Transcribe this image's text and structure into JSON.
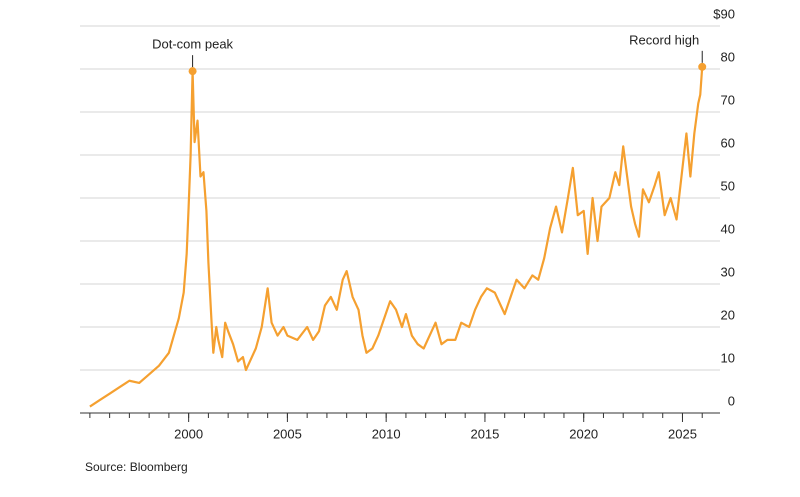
{
  "chart_data": {
    "type": "line",
    "source": "Source: Bloomberg",
    "x": [
      1995.0,
      1995.5,
      1996.0,
      1996.5,
      1997.0,
      1997.5,
      1998.0,
      1998.5,
      1999.0,
      1999.25,
      1999.5,
      1999.75,
      1999.9,
      2000.0,
      2000.1,
      2000.2,
      2000.3,
      2000.45,
      2000.6,
      2000.75,
      2000.9,
      2001.0,
      2001.15,
      2001.25,
      2001.4,
      2001.5,
      2001.7,
      2001.85,
      2002.0,
      2002.25,
      2002.5,
      2002.75,
      2002.9,
      2003.1,
      2003.4,
      2003.7,
      2004.0,
      2004.2,
      2004.5,
      2004.8,
      2005.0,
      2005.5,
      2006.0,
      2006.3,
      2006.6,
      2006.9,
      2007.2,
      2007.5,
      2007.8,
      2008.0,
      2008.3,
      2008.6,
      2008.8,
      2009.0,
      2009.3,
      2009.6,
      2009.9,
      2010.2,
      2010.5,
      2010.8,
      2011.0,
      2011.3,
      2011.6,
      2011.9,
      2012.2,
      2012.5,
      2012.8,
      2013.1,
      2013.5,
      2013.8,
      2014.2,
      2014.5,
      2014.8,
      2015.1,
      2015.5,
      2015.8,
      2016.0,
      2016.3,
      2016.6,
      2017.0,
      2017.4,
      2017.7,
      2018.0,
      2018.3,
      2018.6,
      2018.9,
      2019.2,
      2019.45,
      2019.7,
      2020.0,
      2020.2,
      2020.45,
      2020.7,
      2020.9,
      2021.3,
      2021.6,
      2021.8,
      2022.0,
      2022.2,
      2022.4,
      2022.6,
      2022.8,
      2023.0,
      2023.3,
      2023.6,
      2023.8,
      2024.1,
      2024.4,
      2024.7,
      2025.0,
      2025.2,
      2025.4,
      2025.6,
      2025.8,
      2025.9,
      2026.0
    ],
    "series": [
      {
        "color": "#f5a030",
        "values": [
          1.5,
          3,
          4.5,
          6,
          7.5,
          7,
          9,
          11,
          14,
          18,
          22,
          28,
          37,
          48,
          60,
          79.5,
          63,
          68,
          55,
          56,
          47,
          35,
          22,
          14,
          20,
          17,
          13,
          21,
          19,
          16,
          12,
          13,
          10,
          12,
          15,
          20,
          29,
          21,
          18,
          20,
          18,
          17,
          20,
          17,
          19,
          25,
          27,
          24,
          31,
          33,
          27,
          24,
          18,
          14,
          15,
          18,
          22,
          26,
          24,
          20,
          23,
          18,
          16,
          15,
          18,
          21,
          16,
          17,
          17,
          21,
          20,
          24,
          27,
          29,
          28,
          25,
          23,
          27,
          31,
          29,
          32,
          31,
          36,
          43,
          48,
          42,
          50,
          57,
          46,
          47,
          37,
          50,
          40,
          48,
          50,
          56,
          53,
          62,
          55,
          48,
          44,
          41,
          52,
          49,
          53,
          56,
          46,
          50,
          45,
          57,
          65,
          55,
          65,
          72,
          74,
          80.5
        ]
      }
    ],
    "annotations": [
      {
        "text": "Dot-com peak",
        "x": 2000.2,
        "y": 79.5
      },
      {
        "text": "Record high",
        "x": 2026.0,
        "y": 80.5
      }
    ],
    "xlim": [
      1994.5,
      2026.9
    ],
    "xticks": [
      2000,
      2005,
      2010,
      2015,
      2020,
      2025
    ],
    "ylim": [
      0,
      90
    ],
    "yticks": [
      0,
      10,
      20,
      30,
      40,
      50,
      60,
      70,
      80,
      {
        "value": 90,
        "label": "$90"
      }
    ],
    "grid": true
  }
}
